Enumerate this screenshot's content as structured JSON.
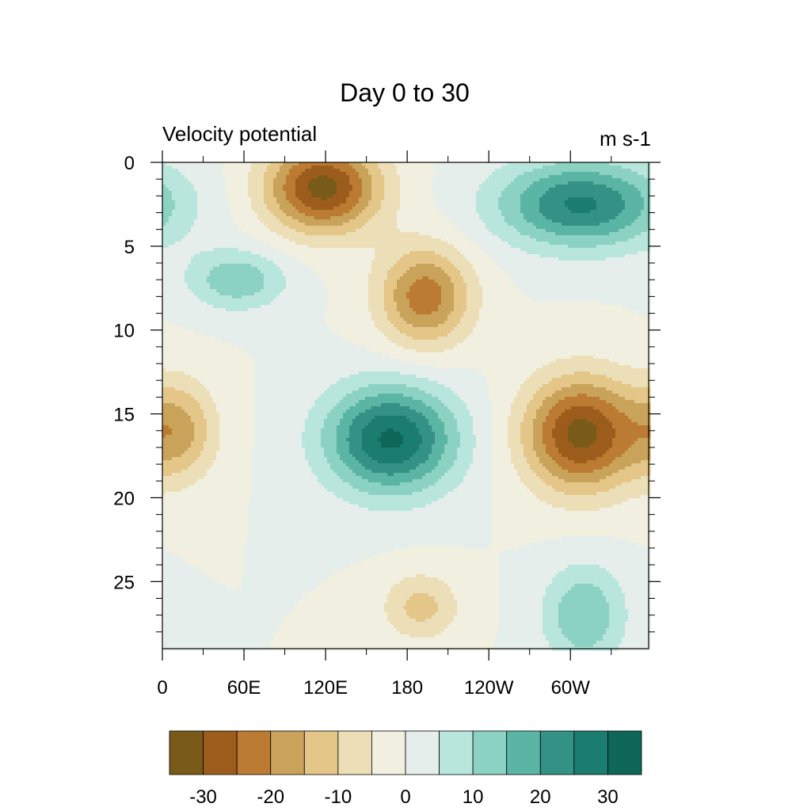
{
  "chart_data": {
    "type": "heatmap",
    "title": "Day 0 to 30",
    "left_label": "Velocity potential",
    "right_label": "m s-1",
    "x_ticks": [
      "0",
      "60E",
      "120E",
      "180",
      "120W",
      "60W"
    ],
    "y_ticks": [
      "0",
      "5",
      "10",
      "15",
      "20",
      "25"
    ],
    "x_range": [
      0,
      357.5
    ],
    "y_range": [
      0,
      29
    ],
    "colorbar": {
      "labels": [
        "-30",
        "-20",
        "-10",
        "0",
        "10",
        "20",
        "30"
      ],
      "levels": [
        -30,
        -25,
        -20,
        -15,
        -10,
        -5,
        0,
        5,
        10,
        15,
        20,
        25,
        30
      ],
      "colors": [
        "#7a5a18",
        "#9c5d1c",
        "#bc7b32",
        "#c9a35a",
        "#e3c688",
        "#ecdfb8",
        "#f1efe0",
        "#e6eeeb",
        "#b8e6dc",
        "#8cd2c2",
        "#5bb5a4",
        "#339186",
        "#1b7c70",
        "#0e6758"
      ]
    },
    "features": [
      {
        "sign": "neg",
        "lon": 118,
        "day": 1.5,
        "peak": -32,
        "lon_width": 42,
        "day_width": 2.7
      },
      {
        "sign": "neg",
        "lon": 193,
        "day": 8.0,
        "peak": -23,
        "lon_width": 34,
        "day_width": 3.0
      },
      {
        "sign": "neg",
        "lon": 308,
        "day": 16.2,
        "peak": -32,
        "lon_width": 42,
        "day_width": 3.4
      },
      {
        "sign": "neg",
        "lon": 12,
        "day": 16.0,
        "peak": -16,
        "lon_width": 28,
        "day_width": 3.0
      },
      {
        "sign": "neg",
        "lon": 190,
        "day": 26.5,
        "peak": -12,
        "lon_width": 28,
        "day_width": 2.0
      },
      {
        "sign": "pos",
        "lon": 168,
        "day": 16.5,
        "peak": 31,
        "lon_width": 48,
        "day_width": 3.2
      },
      {
        "sign": "pos",
        "lon": 308,
        "day": 2.5,
        "peak": 26,
        "lon_width": 62,
        "day_width": 2.6
      },
      {
        "sign": "pos",
        "lon": 55,
        "day": 7.0,
        "peak": 14,
        "lon_width": 36,
        "day_width": 1.8
      },
      {
        "sign": "pos",
        "lon": 310,
        "day": 27.0,
        "peak": 15,
        "lon_width": 30,
        "day_width": 3.0
      }
    ]
  }
}
